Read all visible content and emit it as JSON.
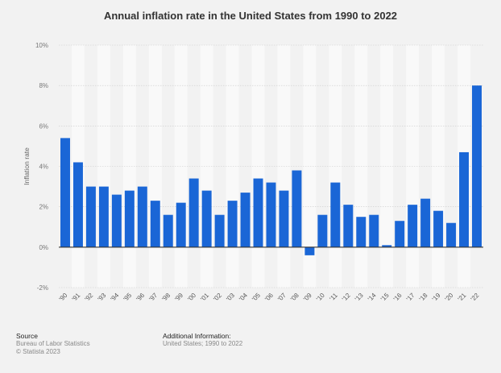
{
  "chart_data": {
    "type": "bar",
    "title": "Annual inflation rate in the United States from 1990 to 2022",
    "xlabel": "",
    "ylabel": "Inflation rate",
    "ylim": [
      -2,
      10
    ],
    "yticks": [
      -2,
      0,
      2,
      4,
      6,
      8,
      10
    ],
    "ytick_labels": [
      "-2%",
      "0%",
      "2%",
      "4%",
      "6%",
      "8%",
      "10%"
    ],
    "grid": true,
    "bar_color": "#1a66d6",
    "categories": [
      "'90",
      "'91",
      "'92",
      "'93",
      "'94",
      "'95",
      "'96",
      "'97",
      "'98",
      "'99",
      "'00",
      "'01",
      "'02",
      "'03",
      "'04",
      "'05",
      "'06",
      "'07",
      "'08",
      "'09",
      "'10",
      "'11",
      "'12",
      "'13",
      "'14",
      "'15",
      "'16",
      "'17",
      "'18",
      "'19",
      "'20",
      "'21",
      "'22"
    ],
    "values": [
      5.4,
      4.2,
      3.0,
      3.0,
      2.6,
      2.8,
      3.0,
      2.3,
      1.6,
      2.2,
      3.4,
      2.8,
      1.6,
      2.3,
      2.7,
      3.4,
      3.2,
      2.8,
      3.8,
      -0.4,
      1.6,
      3.2,
      2.1,
      1.5,
      1.6,
      0.1,
      1.3,
      2.1,
      2.4,
      1.8,
      1.2,
      4.7,
      8.0
    ]
  },
  "footer": {
    "source_heading": "Source",
    "source_text": "Bureau of Labor Statistics",
    "copyright": "© Statista 2023",
    "info_heading": "Additional Information:",
    "info_text": "United States; 1990 to 2022"
  }
}
